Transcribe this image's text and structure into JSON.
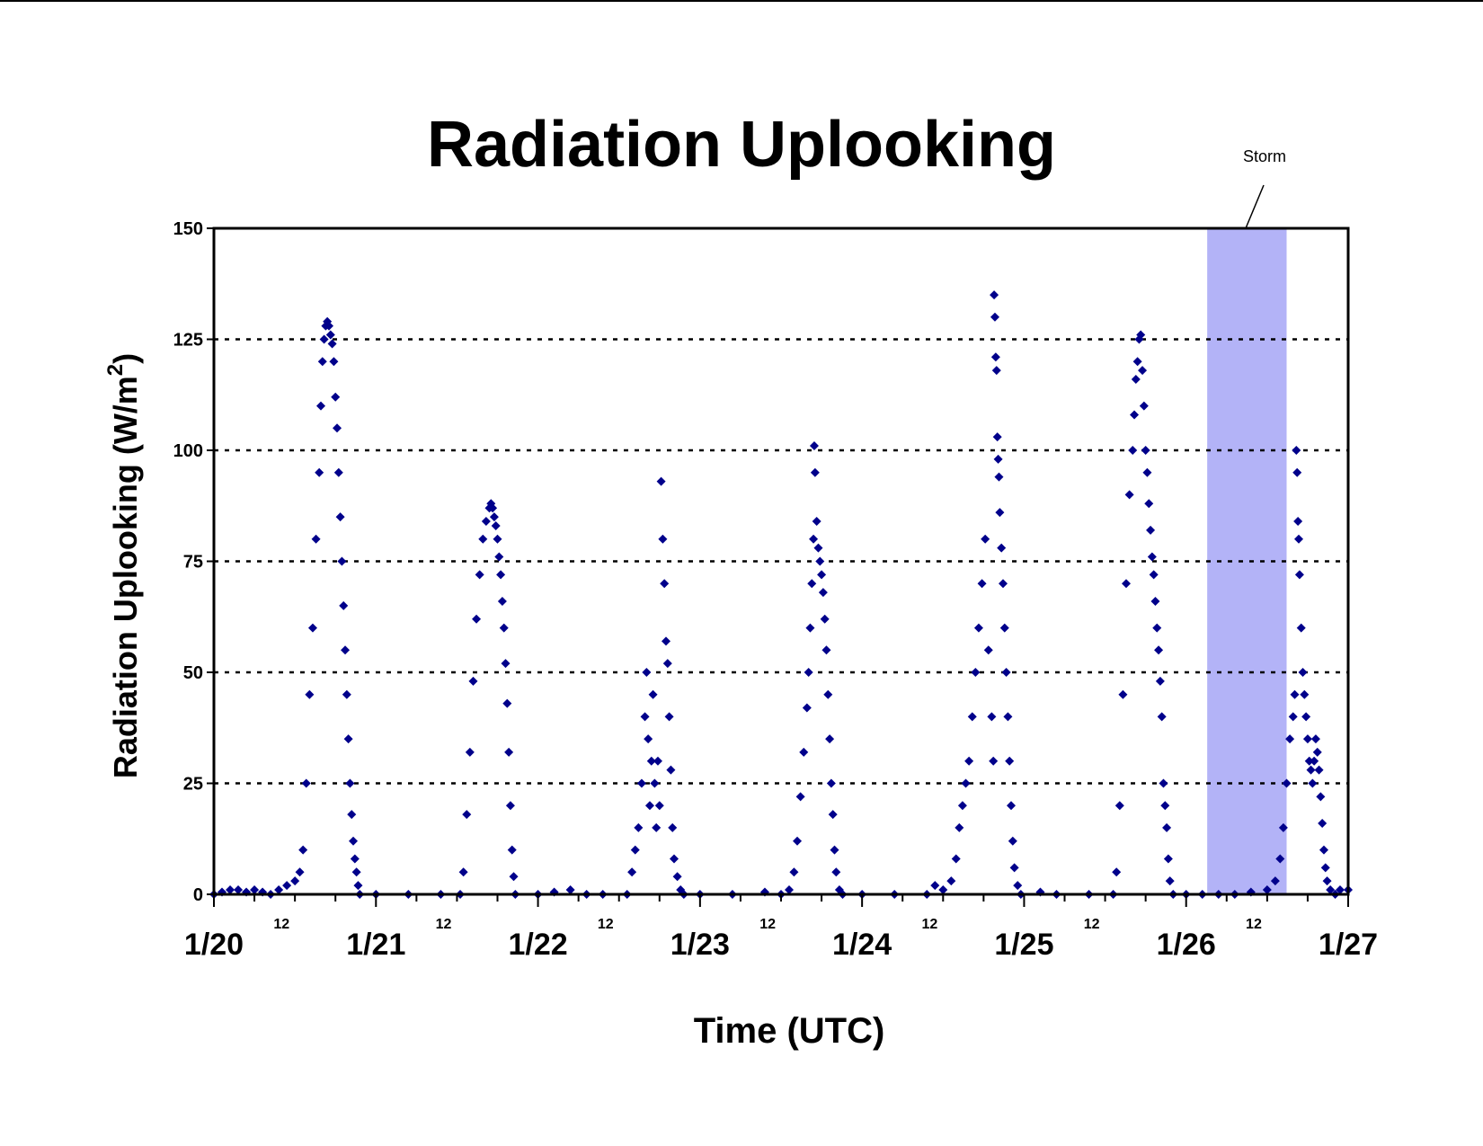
{
  "chart_data": {
    "type": "scatter",
    "title": "Radiation Uplooking",
    "xlabel": "Time (UTC)",
    "ylabel": "Radiation Uplooking (W/m",
    "ylabel_superscript": "2",
    "ylabel_suffix": ")",
    "xlim": [
      0,
      7
    ],
    "ylim": [
      0,
      150
    ],
    "x_unit": "days after 1/20 00:00 UTC",
    "y_ticks": [
      "0",
      "25",
      "50",
      "75",
      "100",
      "125",
      "150"
    ],
    "y_tick_values": [
      0,
      25,
      50,
      75,
      100,
      125,
      150
    ],
    "x_major_ticks": [
      {
        "x": 0,
        "label": "1/20"
      },
      {
        "x": 1,
        "label": "1/21"
      },
      {
        "x": 2,
        "label": "1/22"
      },
      {
        "x": 3,
        "label": "1/23"
      },
      {
        "x": 4,
        "label": "1/24"
      },
      {
        "x": 5,
        "label": "1/25"
      },
      {
        "x": 6,
        "label": "1/26"
      },
      {
        "x": 7,
        "label": "1/27"
      }
    ],
    "x_minor_labels": [
      {
        "x": 0.5,
        "label": "12"
      },
      {
        "x": 1.5,
        "label": "12"
      },
      {
        "x": 2.5,
        "label": "12"
      },
      {
        "x": 3.5,
        "label": "12"
      },
      {
        "x": 4.5,
        "label": "12"
      },
      {
        "x": 5.5,
        "label": "12"
      },
      {
        "x": 6.5,
        "label": "12"
      }
    ],
    "grid": "horizontal-dotted",
    "marker_color": "#00008b",
    "shaded_region": {
      "x0": 6.13,
      "x1": 6.62,
      "color": "#b3b3f7",
      "label": "Storm"
    },
    "series": [
      {
        "points": [
          [
            0.0,
            0
          ],
          [
            0.05,
            0.5
          ],
          [
            0.1,
            1
          ],
          [
            0.15,
            1
          ],
          [
            0.2,
            0.5
          ],
          [
            0.25,
            1
          ],
          [
            0.3,
            0.5
          ],
          [
            0.35,
            0
          ],
          [
            0.4,
            1
          ],
          [
            0.45,
            2
          ],
          [
            0.5,
            3
          ],
          [
            0.53,
            5
          ],
          [
            0.55,
            10
          ],
          [
            0.57,
            25
          ],
          [
            0.59,
            45
          ],
          [
            0.61,
            60
          ],
          [
            0.63,
            80
          ],
          [
            0.65,
            95
          ],
          [
            0.66,
            110
          ],
          [
            0.67,
            120
          ],
          [
            0.68,
            125
          ],
          [
            0.69,
            128
          ],
          [
            0.7,
            129
          ],
          [
            0.71,
            128
          ],
          [
            0.72,
            126
          ],
          [
            0.73,
            124
          ],
          [
            0.74,
            120
          ],
          [
            0.75,
            112
          ],
          [
            0.76,
            105
          ],
          [
            0.77,
            95
          ],
          [
            0.78,
            85
          ],
          [
            0.79,
            75
          ],
          [
            0.8,
            65
          ],
          [
            0.81,
            55
          ],
          [
            0.82,
            45
          ],
          [
            0.83,
            35
          ],
          [
            0.84,
            25
          ],
          [
            0.85,
            18
          ],
          [
            0.86,
            12
          ],
          [
            0.87,
            8
          ],
          [
            0.88,
            5
          ],
          [
            0.89,
            2
          ],
          [
            0.9,
            0
          ],
          [
            1.0,
            0
          ],
          [
            1.2,
            0
          ],
          [
            1.4,
            0
          ],
          [
            1.52,
            0
          ],
          [
            1.54,
            5
          ],
          [
            1.56,
            18
          ],
          [
            1.58,
            32
          ],
          [
            1.6,
            48
          ],
          [
            1.62,
            62
          ],
          [
            1.64,
            72
          ],
          [
            1.66,
            80
          ],
          [
            1.68,
            84
          ],
          [
            1.7,
            87
          ],
          [
            1.71,
            88
          ],
          [
            1.72,
            87
          ],
          [
            1.73,
            85
          ],
          [
            1.74,
            83
          ],
          [
            1.75,
            80
          ],
          [
            1.76,
            76
          ],
          [
            1.77,
            72
          ],
          [
            1.78,
            66
          ],
          [
            1.79,
            60
          ],
          [
            1.8,
            52
          ],
          [
            1.81,
            43
          ],
          [
            1.82,
            32
          ],
          [
            1.83,
            20
          ],
          [
            1.84,
            10
          ],
          [
            1.85,
            4
          ],
          [
            1.86,
            0
          ],
          [
            2.0,
            0
          ],
          [
            2.1,
            0.5
          ],
          [
            2.2,
            1
          ],
          [
            2.3,
            0
          ],
          [
            2.4,
            0
          ],
          [
            2.55,
            0
          ],
          [
            2.58,
            5
          ],
          [
            2.6,
            10
          ],
          [
            2.62,
            15
          ],
          [
            2.64,
            25
          ],
          [
            2.66,
            40
          ],
          [
            2.67,
            50
          ],
          [
            2.68,
            35
          ],
          [
            2.69,
            20
          ],
          [
            2.7,
            30
          ],
          [
            2.71,
            45
          ],
          [
            2.72,
            25
          ],
          [
            2.73,
            15
          ],
          [
            2.74,
            30
          ],
          [
            2.75,
            20
          ],
          [
            2.76,
            93
          ],
          [
            2.77,
            80
          ],
          [
            2.78,
            70
          ],
          [
            2.79,
            57
          ],
          [
            2.8,
            52
          ],
          [
            2.81,
            40
          ],
          [
            2.82,
            28
          ],
          [
            2.83,
            15
          ],
          [
            2.84,
            8
          ],
          [
            2.86,
            4
          ],
          [
            2.88,
            1
          ],
          [
            2.9,
            0
          ],
          [
            3.0,
            0
          ],
          [
            3.2,
            0
          ],
          [
            3.4,
            0.5
          ],
          [
            3.5,
            0
          ],
          [
            3.55,
            1
          ],
          [
            3.58,
            5
          ],
          [
            3.6,
            12
          ],
          [
            3.62,
            22
          ],
          [
            3.64,
            32
          ],
          [
            3.66,
            42
          ],
          [
            3.67,
            50
          ],
          [
            3.68,
            60
          ],
          [
            3.69,
            70
          ],
          [
            3.7,
            80
          ],
          [
            3.705,
            101
          ],
          [
            3.71,
            95
          ],
          [
            3.72,
            84
          ],
          [
            3.73,
            78
          ],
          [
            3.74,
            75
          ],
          [
            3.75,
            72
          ],
          [
            3.76,
            68
          ],
          [
            3.77,
            62
          ],
          [
            3.78,
            55
          ],
          [
            3.79,
            45
          ],
          [
            3.8,
            35
          ],
          [
            3.81,
            25
          ],
          [
            3.82,
            18
          ],
          [
            3.83,
            10
          ],
          [
            3.84,
            5
          ],
          [
            3.86,
            1
          ],
          [
            3.88,
            0
          ],
          [
            4.0,
            0
          ],
          [
            4.2,
            0
          ],
          [
            4.4,
            0
          ],
          [
            4.45,
            2
          ],
          [
            4.5,
            1
          ],
          [
            4.55,
            3
          ],
          [
            4.58,
            8
          ],
          [
            4.6,
            15
          ],
          [
            4.62,
            20
          ],
          [
            4.64,
            25
          ],
          [
            4.66,
            30
          ],
          [
            4.68,
            40
          ],
          [
            4.7,
            50
          ],
          [
            4.72,
            60
          ],
          [
            4.74,
            70
          ],
          [
            4.76,
            80
          ],
          [
            4.78,
            55
          ],
          [
            4.8,
            40
          ],
          [
            4.81,
            30
          ],
          [
            4.815,
            135
          ],
          [
            4.82,
            130
          ],
          [
            4.825,
            121
          ],
          [
            4.83,
            118
          ],
          [
            4.835,
            103
          ],
          [
            4.84,
            98
          ],
          [
            4.845,
            94
          ],
          [
            4.85,
            86
          ],
          [
            4.86,
            78
          ],
          [
            4.87,
            70
          ],
          [
            4.88,
            60
          ],
          [
            4.89,
            50
          ],
          [
            4.9,
            40
          ],
          [
            4.91,
            30
          ],
          [
            4.92,
            20
          ],
          [
            4.93,
            12
          ],
          [
            4.94,
            6
          ],
          [
            4.96,
            2
          ],
          [
            4.98,
            0
          ],
          [
            5.1,
            0.5
          ],
          [
            5.2,
            0
          ],
          [
            5.4,
            0
          ],
          [
            5.55,
            0
          ],
          [
            5.57,
            5
          ],
          [
            5.59,
            20
          ],
          [
            5.61,
            45
          ],
          [
            5.63,
            70
          ],
          [
            5.65,
            90
          ],
          [
            5.67,
            100
          ],
          [
            5.68,
            108
          ],
          [
            5.69,
            116
          ],
          [
            5.7,
            120
          ],
          [
            5.71,
            125
          ],
          [
            5.72,
            126
          ],
          [
            5.73,
            118
          ],
          [
            5.74,
            110
          ],
          [
            5.75,
            100
          ],
          [
            5.76,
            95
          ],
          [
            5.77,
            88
          ],
          [
            5.78,
            82
          ],
          [
            5.79,
            76
          ],
          [
            5.8,
            72
          ],
          [
            5.81,
            66
          ],
          [
            5.82,
            60
          ],
          [
            5.83,
            55
          ],
          [
            5.84,
            48
          ],
          [
            5.85,
            40
          ],
          [
            5.86,
            25
          ],
          [
            5.87,
            20
          ],
          [
            5.88,
            15
          ],
          [
            5.89,
            8
          ],
          [
            5.9,
            3
          ],
          [
            5.92,
            0
          ],
          [
            6.0,
            0
          ],
          [
            6.1,
            0
          ],
          [
            6.2,
            0
          ],
          [
            6.3,
            0
          ],
          [
            6.4,
            0.5
          ],
          [
            6.5,
            1
          ],
          [
            6.55,
            3
          ],
          [
            6.58,
            8
          ],
          [
            6.6,
            15
          ],
          [
            6.62,
            25
          ],
          [
            6.64,
            35
          ],
          [
            6.66,
            40
          ],
          [
            6.67,
            45
          ],
          [
            6.68,
            100
          ],
          [
            6.685,
            95
          ],
          [
            6.69,
            84
          ],
          [
            6.695,
            80
          ],
          [
            6.7,
            72
          ],
          [
            6.71,
            60
          ],
          [
            6.72,
            50
          ],
          [
            6.73,
            45
          ],
          [
            6.74,
            40
          ],
          [
            6.75,
            35
          ],
          [
            6.76,
            30
          ],
          [
            6.77,
            28
          ],
          [
            6.78,
            25
          ],
          [
            6.79,
            30
          ],
          [
            6.8,
            35
          ],
          [
            6.81,
            32
          ],
          [
            6.82,
            28
          ],
          [
            6.83,
            22
          ],
          [
            6.84,
            16
          ],
          [
            6.85,
            10
          ],
          [
            6.86,
            6
          ],
          [
            6.87,
            3
          ],
          [
            6.89,
            1
          ],
          [
            6.92,
            0
          ],
          [
            6.95,
            1
          ],
          [
            7.0,
            1
          ]
        ]
      }
    ]
  }
}
